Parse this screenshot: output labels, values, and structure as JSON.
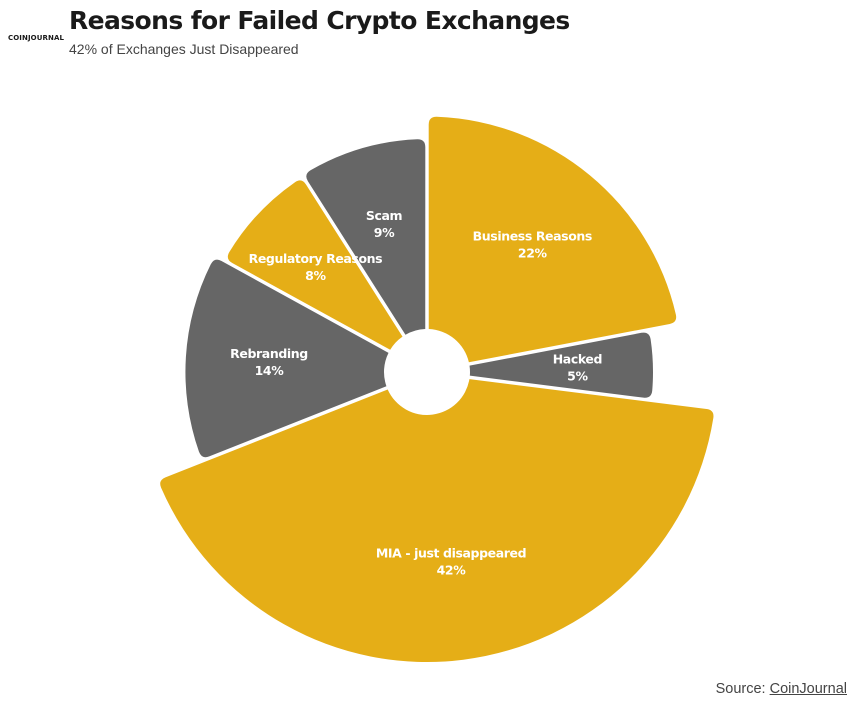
{
  "logo_text": "COINJOURNAL",
  "title": "Reasons for Failed Crypto Exchanges",
  "subtitle": "42% of Exchanges Just Disappeared",
  "source": {
    "prefix": "Source: ",
    "link_text": "CoinJournal"
  },
  "colors": {
    "gold": "#e5ae17",
    "gray": "#666666",
    "text_dark": "#1a1a1a",
    "label_text": "#ffffff"
  },
  "chart_data": {
    "type": "pie",
    "variant": "variable-radius donut",
    "title": "Reasons for Failed Crypto Exchanges",
    "subtitle": "42% of Exchanges Just Disappeared",
    "slices": [
      {
        "label": "Business Reasons",
        "value": 22,
        "value_label": "22%",
        "color": "#e5ae17"
      },
      {
        "label": "Hacked",
        "value": 5,
        "value_label": "5%",
        "color": "#666666"
      },
      {
        "label": "MIA - just disappeared",
        "value": 42,
        "value_label": "42%",
        "color": "#e5ae17"
      },
      {
        "label": "Rebranding",
        "value": 14,
        "value_label": "14%",
        "color": "#666666"
      },
      {
        "label": "Regulatory Reasons",
        "value": 8,
        "value_label": "8%",
        "color": "#e5ae17"
      },
      {
        "label": "Scam",
        "value": 9,
        "value_label": "9%",
        "color": "#666666"
      }
    ]
  }
}
